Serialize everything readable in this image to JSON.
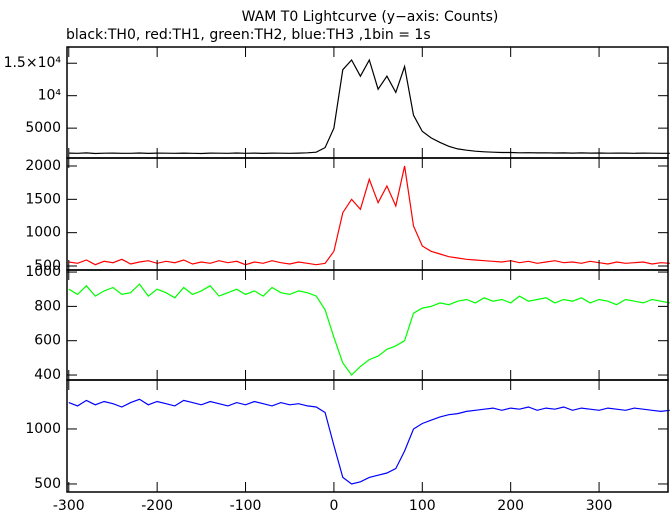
{
  "chart_data": [
    {
      "type": "line",
      "title": "WAM T0 Lightcurve (y−axis: Counts)",
      "subtitle": "black:TH0, red:TH1, green:TH2, blue:TH3 ,1bin = 1s",
      "xlim": [
        -302,
        378
      ],
      "xticks": [
        -300,
        -200,
        -100,
        0,
        100,
        200,
        300
      ],
      "ylim": [
        400,
        17500
      ],
      "yticks": [
        {
          "value": 5000,
          "label": "5000"
        },
        {
          "value": 10000,
          "label": "10⁴"
        },
        {
          "value": 15000,
          "label": "1.5×10⁴"
        }
      ],
      "x": [
        -300,
        -290,
        -280,
        -270,
        -260,
        -250,
        -240,
        -230,
        -220,
        -210,
        -200,
        -190,
        -180,
        -170,
        -160,
        -150,
        -140,
        -130,
        -120,
        -110,
        -100,
        -90,
        -80,
        -70,
        -60,
        -50,
        -40,
        -30,
        -20,
        -10,
        0,
        10,
        20,
        30,
        40,
        50,
        60,
        70,
        80,
        90,
        100,
        110,
        120,
        130,
        140,
        150,
        160,
        170,
        180,
        190,
        200,
        210,
        220,
        230,
        240,
        250,
        260,
        270,
        280,
        290,
        300,
        310,
        320,
        330,
        340,
        350,
        360,
        370,
        380
      ],
      "series": [
        {
          "color": "#000000",
          "values": [
            1150,
            1120,
            1180,
            1100,
            1140,
            1160,
            1120,
            1130,
            1170,
            1110,
            1150,
            1140,
            1120,
            1160,
            1130,
            1100,
            1150,
            1140,
            1120,
            1170,
            1130,
            1150,
            1110,
            1160,
            1140,
            1130,
            1150,
            1200,
            1300,
            2000,
            5000,
            14000,
            15500,
            13000,
            15500,
            11000,
            13000,
            10500,
            14500,
            7000,
            4500,
            3500,
            2800,
            2200,
            1800,
            1600,
            1450,
            1350,
            1300,
            1250,
            1250,
            1200,
            1220,
            1180,
            1200,
            1170,
            1190,
            1160,
            1180,
            1150,
            1170,
            1140,
            1160,
            1150,
            1130,
            1150,
            1140,
            1130,
            1120
          ]
        }
      ]
    },
    {
      "type": "line",
      "xlim": [
        -302,
        378
      ],
      "xticks": [
        -300,
        -200,
        -100,
        0,
        100,
        200,
        300
      ],
      "ylim": [
        440,
        2120
      ],
      "yticks": [
        500,
        1000,
        1500,
        2000
      ],
      "x": [
        -300,
        -290,
        -280,
        -270,
        -260,
        -250,
        -240,
        -230,
        -220,
        -210,
        -200,
        -190,
        -180,
        -170,
        -160,
        -150,
        -140,
        -130,
        -120,
        -110,
        -100,
        -90,
        -80,
        -70,
        -60,
        -50,
        -40,
        -30,
        -20,
        -10,
        0,
        10,
        20,
        30,
        40,
        50,
        60,
        70,
        80,
        90,
        100,
        110,
        120,
        130,
        140,
        150,
        160,
        170,
        180,
        190,
        200,
        210,
        220,
        230,
        240,
        250,
        260,
        270,
        280,
        290,
        300,
        310,
        320,
        330,
        340,
        350,
        360,
        370,
        380
      ],
      "series": [
        {
          "color": "#ff0000",
          "values": [
            560,
            540,
            590,
            520,
            570,
            550,
            600,
            530,
            560,
            580,
            540,
            570,
            550,
            590,
            530,
            560,
            540,
            580,
            550,
            570,
            520,
            560,
            540,
            580,
            550,
            530,
            560,
            540,
            520,
            540,
            720,
            1300,
            1500,
            1350,
            1800,
            1450,
            1700,
            1400,
            2000,
            1100,
            800,
            720,
            680,
            640,
            620,
            600,
            590,
            580,
            570,
            560,
            580,
            550,
            570,
            540,
            560,
            580,
            550,
            560,
            540,
            570,
            550,
            530,
            560,
            540,
            550,
            560,
            530,
            550,
            540
          ]
        }
      ]
    },
    {
      "type": "line",
      "xlim": [
        -302,
        378
      ],
      "xticks": [
        -300,
        -200,
        -100,
        0,
        100,
        200,
        300
      ],
      "ylim": [
        371,
        1012
      ],
      "yticks": [
        400,
        600,
        800,
        1000
      ],
      "x": [
        -300,
        -290,
        -280,
        -270,
        -260,
        -250,
        -240,
        -230,
        -220,
        -210,
        -200,
        -190,
        -180,
        -170,
        -160,
        -150,
        -140,
        -130,
        -120,
        -110,
        -100,
        -90,
        -80,
        -70,
        -60,
        -50,
        -40,
        -30,
        -20,
        -10,
        0,
        10,
        20,
        30,
        40,
        50,
        60,
        70,
        80,
        90,
        100,
        110,
        120,
        130,
        140,
        150,
        160,
        170,
        180,
        190,
        200,
        210,
        220,
        230,
        240,
        250,
        260,
        270,
        280,
        290,
        300,
        310,
        320,
        330,
        340,
        350,
        360,
        370,
        380
      ],
      "series": [
        {
          "color": "#00ff00",
          "values": [
            900,
            870,
            920,
            860,
            890,
            910,
            870,
            880,
            930,
            860,
            900,
            880,
            850,
            910,
            870,
            890,
            920,
            860,
            880,
            900,
            870,
            890,
            860,
            910,
            880,
            870,
            890,
            880,
            860,
            780,
            620,
            470,
            400,
            450,
            490,
            510,
            550,
            570,
            600,
            760,
            790,
            800,
            820,
            810,
            830,
            840,
            820,
            850,
            830,
            840,
            820,
            860,
            830,
            840,
            850,
            820,
            840,
            830,
            850,
            820,
            840,
            830,
            810,
            840,
            830,
            820,
            840,
            830,
            820
          ]
        }
      ]
    },
    {
      "type": "line",
      "xlim": [
        -302,
        378
      ],
      "xticks": [
        -300,
        -200,
        -100,
        0,
        100,
        200,
        300
      ],
      "ylim": [
        427,
        1445
      ],
      "yticks": [
        500,
        1000
      ],
      "x": [
        -300,
        -290,
        -280,
        -270,
        -260,
        -250,
        -240,
        -230,
        -220,
        -210,
        -200,
        -190,
        -180,
        -170,
        -160,
        -150,
        -140,
        -130,
        -120,
        -110,
        -100,
        -90,
        -80,
        -70,
        -60,
        -50,
        -40,
        -30,
        -20,
        -10,
        0,
        10,
        20,
        30,
        40,
        50,
        60,
        70,
        80,
        90,
        100,
        110,
        120,
        130,
        140,
        150,
        160,
        170,
        180,
        190,
        200,
        210,
        220,
        230,
        240,
        250,
        260,
        270,
        280,
        290,
        300,
        310,
        320,
        330,
        340,
        350,
        360,
        370,
        380
      ],
      "series": [
        {
          "color": "#0000ff",
          "values": [
            1240,
            1210,
            1260,
            1220,
            1250,
            1230,
            1200,
            1240,
            1270,
            1220,
            1250,
            1230,
            1210,
            1260,
            1240,
            1220,
            1250,
            1230,
            1210,
            1240,
            1220,
            1250,
            1230,
            1210,
            1240,
            1220,
            1230,
            1210,
            1200,
            1150,
            850,
            560,
            500,
            520,
            560,
            580,
            600,
            640,
            800,
            1000,
            1050,
            1080,
            1110,
            1130,
            1140,
            1160,
            1170,
            1180,
            1190,
            1170,
            1190,
            1180,
            1200,
            1170,
            1190,
            1180,
            1200,
            1170,
            1190,
            1180,
            1170,
            1190,
            1180,
            1170,
            1190,
            1180,
            1170,
            1160,
            1170
          ]
        }
      ]
    }
  ]
}
